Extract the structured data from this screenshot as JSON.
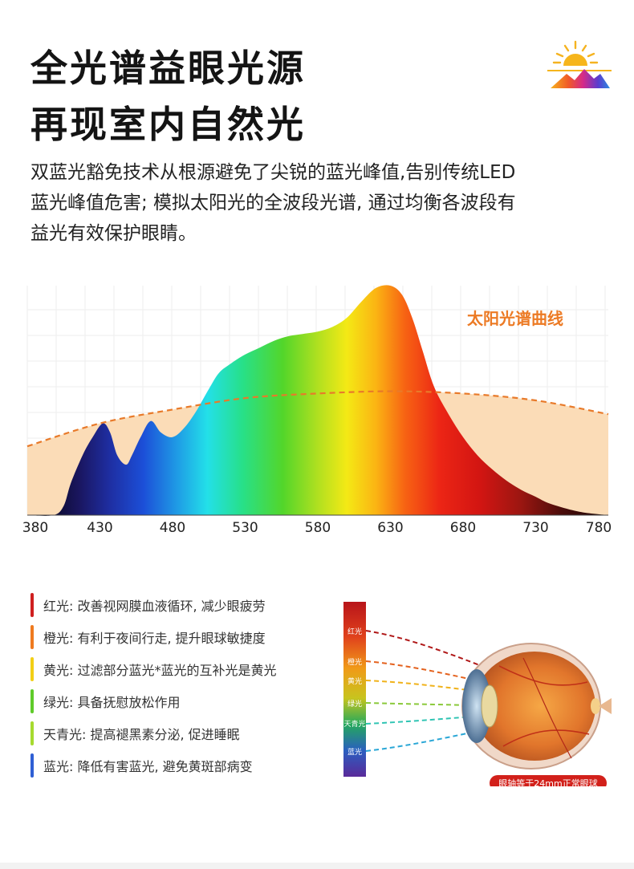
{
  "heading": {
    "line1": "全光谱益眼光源",
    "line2": "再现室内自然光"
  },
  "description": {
    "line1": "双蓝光豁免技术从根源避免了尖锐的蓝光峰值,告别传统LED",
    "line2": "蓝光峰值危害; 模拟太阳光的全波段光谱, 通过均衡各波段有",
    "line3": "益光有效保护眼睛。"
  },
  "logo": {
    "icon": "sun-mountain-logo-icon"
  },
  "chart_data": {
    "type": "area",
    "x_ticks": [
      "380",
      "430",
      "480",
      "530",
      "580",
      "630",
      "680",
      "730",
      "780"
    ],
    "xlim": [
      380,
      780
    ],
    "curve_label": "太阳光谱曲线",
    "series": [
      {
        "name": "太阳光谱曲线",
        "x": [
          380,
          430,
          480,
          530,
          580,
          630,
          680,
          730,
          780
        ],
        "y": [
          0.3,
          0.4,
          0.46,
          0.51,
          0.53,
          0.54,
          0.53,
          0.5,
          0.44
        ]
      },
      {
        "x": [
          380,
          398,
          405,
          410,
          418,
          425,
          432,
          437,
          442,
          448,
          452,
          458,
          465,
          472,
          480,
          488,
          496,
          505,
          512,
          520,
          530,
          540,
          550,
          560,
          570,
          580,
          590,
          600,
          610,
          620,
          630,
          638,
          645,
          652,
          660,
          670,
          680,
          690,
          700,
          710,
          720,
          730,
          740,
          760,
          780
        ],
        "y": [
          0.0,
          0.0,
          0.04,
          0.14,
          0.26,
          0.34,
          0.4,
          0.36,
          0.26,
          0.22,
          0.26,
          0.34,
          0.41,
          0.36,
          0.34,
          0.38,
          0.45,
          0.55,
          0.62,
          0.66,
          0.7,
          0.73,
          0.76,
          0.78,
          0.79,
          0.8,
          0.82,
          0.86,
          0.93,
          0.99,
          1.0,
          0.96,
          0.86,
          0.72,
          0.56,
          0.44,
          0.34,
          0.26,
          0.2,
          0.15,
          0.11,
          0.08,
          0.05,
          0.015,
          0.0
        ]
      }
    ],
    "grid": true
  },
  "legend": {
    "items": [
      {
        "text": "红光: 改善视网膜血液循环, 减少眼疲劳",
        "color": "#cf1f1f"
      },
      {
        "text": "橙光: 有利于夜间行走, 提升眼球敏捷度",
        "color": "#ef7a1f"
      },
      {
        "text": "黄光: 过滤部分蓝光*蓝光的互补光是黄光",
        "color": "#f2cf16"
      },
      {
        "text": "绿光: 具备抚慰放松作用",
        "color": "#5fcb2a"
      },
      {
        "text": "天青光: 提高褪黑素分泌, 促进睡眠",
        "color": "#a6da2f"
      },
      {
        "text": "蓝光: 降低有害蓝光, 避免黄斑部病变",
        "color": "#2f5fd4"
      }
    ]
  },
  "eye_diagram": {
    "bands": [
      "红光",
      "橙光",
      "黄光",
      "绿光",
      "天青光",
      "蓝光"
    ],
    "caption": "眼轴等于24mm正常眼球",
    "icon": "eyeball-cross-section-icon"
  }
}
